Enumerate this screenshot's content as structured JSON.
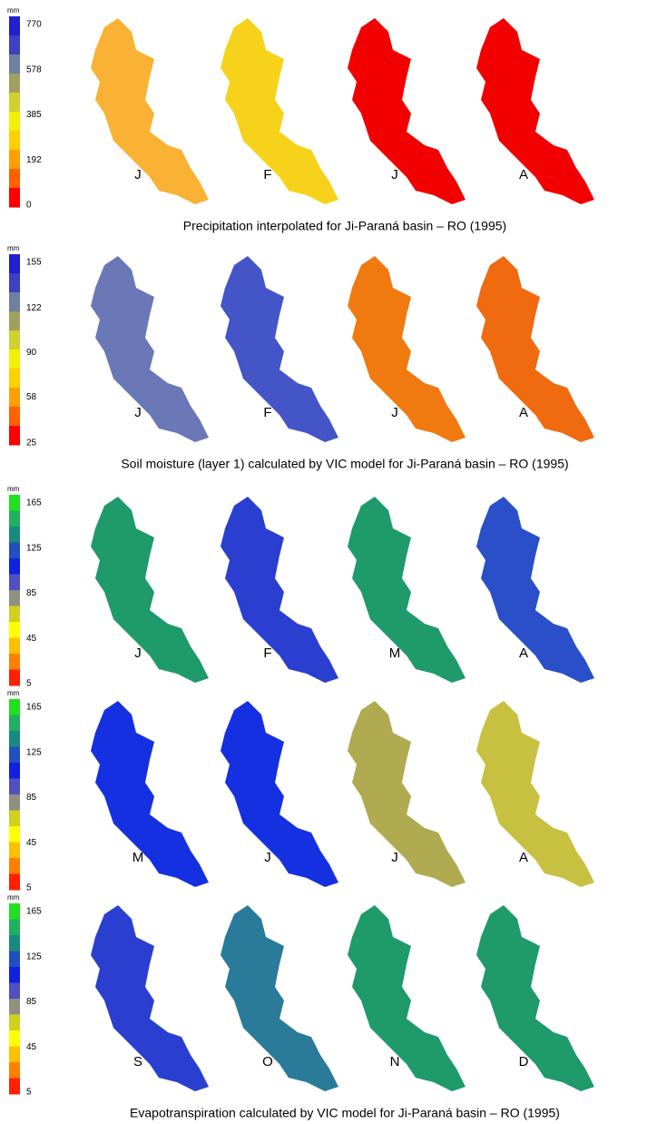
{
  "rows": [
    {
      "unit": "mm",
      "scale": [
        770,
        578,
        385,
        192,
        0
      ],
      "colors": [
        "#2020d0",
        "#4040c0",
        "#7080a0",
        "#a0a060",
        "#d0d030",
        "#f0f000",
        "#ffd000",
        "#ffa000",
        "#ff6000",
        "#ff0000"
      ],
      "maps": [
        {
          "label": "J",
          "color": "#f9b233"
        },
        {
          "label": "F",
          "color": "#f7d21a"
        },
        {
          "label": "J",
          "color": "#f20000"
        },
        {
          "label": "A",
          "color": "#f20000"
        }
      ],
      "caption": "Precipitation interpolated for Ji-Paraná basin – RO (1995)"
    },
    {
      "unit": "mm",
      "scale": [
        155,
        122,
        90,
        58,
        25
      ],
      "colors": [
        "#2020d0",
        "#4040c0",
        "#7080a0",
        "#a0a060",
        "#d0d030",
        "#f0f000",
        "#ffd000",
        "#ffa000",
        "#ff6000",
        "#ff0000"
      ],
      "maps": [
        {
          "label": "J",
          "color": "#6a78b8"
        },
        {
          "label": "F",
          "color": "#4455c8"
        },
        {
          "label": "J",
          "color": "#f07a10"
        },
        {
          "label": "A",
          "color": "#f06a10"
        }
      ],
      "caption": "Soil moisture (layer 1)  calculated by VIC model for Ji-Paraná basin – RO (1995)"
    },
    {
      "unit": "mm",
      "scale": [
        165,
        125,
        85,
        45,
        5
      ],
      "colors": [
        "#20e020",
        "#20b060",
        "#1a8a80",
        "#2050c0",
        "#1020e0",
        "#5050c0",
        "#909080",
        "#d0d020",
        "#ffff00",
        "#ffc000",
        "#ff8000",
        "#ff2000"
      ],
      "maps": [
        {
          "label": "J",
          "color": "#1f9a6a"
        },
        {
          "label": "F",
          "color": "#2a3fd0"
        },
        {
          "label": "M",
          "color": "#1f9a6a"
        },
        {
          "label": "A",
          "color": "#2a4fc8"
        }
      ]
    },
    {
      "unit": "mm",
      "scale": [
        165,
        125,
        85,
        45,
        5
      ],
      "colors": [
        "#20e020",
        "#20b060",
        "#1a8a80",
        "#2050c0",
        "#1020e0",
        "#5050c0",
        "#909080",
        "#d0d020",
        "#ffff00",
        "#ffc000",
        "#ff8000",
        "#ff2000"
      ],
      "maps": [
        {
          "label": "M",
          "color": "#1530e0"
        },
        {
          "label": "J",
          "color": "#1530e0"
        },
        {
          "label": "J",
          "color": "#b0aa50"
        },
        {
          "label": "A",
          "color": "#c8c040"
        }
      ]
    },
    {
      "unit": "mm",
      "scale": [
        165,
        125,
        85,
        45,
        5
      ],
      "colors": [
        "#20e020",
        "#20b060",
        "#1a8a80",
        "#2050c0",
        "#1020e0",
        "#5050c0",
        "#909080",
        "#d0d020",
        "#ffff00",
        "#ffc000",
        "#ff8000",
        "#ff2000"
      ],
      "maps": [
        {
          "label": "S",
          "color": "#2a3fd0"
        },
        {
          "label": "O",
          "color": "#2a7a9a"
        },
        {
          "label": "N",
          "color": "#1f9a6a"
        },
        {
          "label": "D",
          "color": "#1f9a6a"
        }
      ],
      "caption": "Evapotranspiration calculated by VIC model for Ji-Paraná basin – RO (1995)"
    }
  ]
}
